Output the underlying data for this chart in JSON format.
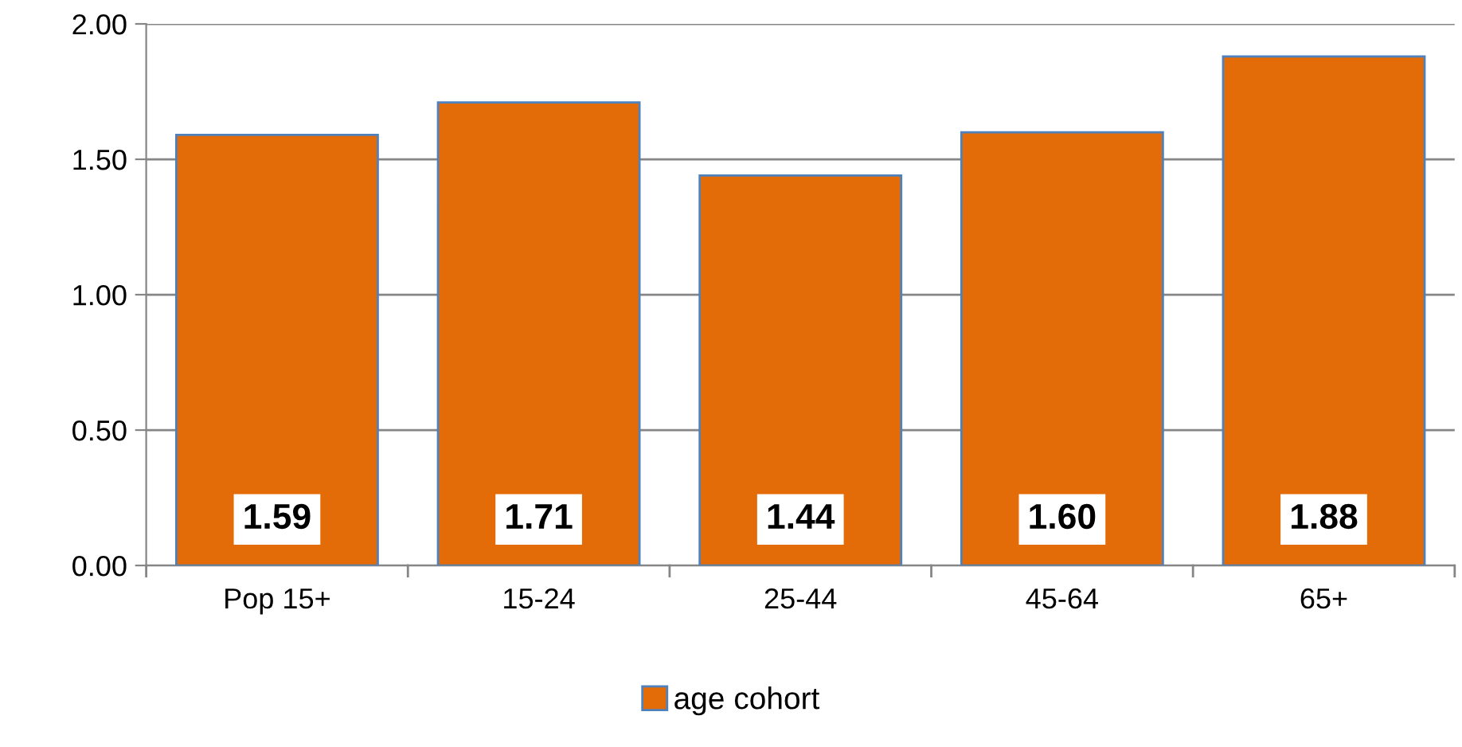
{
  "chart_data": {
    "type": "bar",
    "categories": [
      "Pop 15+",
      "15-24",
      "25-44",
      "45-64",
      "65+"
    ],
    "series": [
      {
        "name": "age cohort",
        "color": "#e36c09",
        "values": [
          1.59,
          1.71,
          1.44,
          1.6,
          1.88
        ],
        "value_labels": [
          "1.59",
          "1.71",
          "1.44",
          "1.60",
          "1.88"
        ]
      }
    ],
    "ylim": [
      0,
      2
    ],
    "yticks": [
      {
        "value": 0,
        "label": "0.00"
      },
      {
        "value": 0.5,
        "label": "0.50"
      },
      {
        "value": 1,
        "label": "1.00"
      },
      {
        "value": 1.5,
        "label": "1.50"
      },
      {
        "value": 2,
        "label": "2.00"
      }
    ],
    "grid": "y",
    "legend": "bottom"
  }
}
